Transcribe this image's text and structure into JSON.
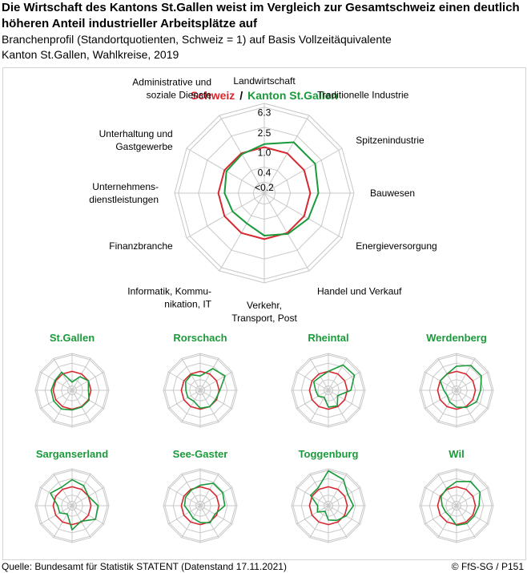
{
  "title": "Die Wirtschaft des Kantons St.Gallen weist im Vergleich zur Gesamtschweiz einen deutlich höheren Anteil industrieller Arbeitsplätze auf",
  "subtitle": "Branchenprofil (Standortquotienten, Schweiz = 1) auf Basis Vollzeitäquivalente",
  "subtitle2": "Kanton St.Gallen, Wahlkreise, 2019",
  "source": "Quelle: Bundesamt für Statistik STATENT (Datenstand 17.11.2021)",
  "copyright": "© FfS-SG / P151",
  "colors": {
    "schweiz": "#d7282f",
    "kanton": "#1a9a3a",
    "grid": "#c8c8c8",
    "region_title": "#1a9a3a"
  },
  "chart_data": {
    "type": "radar",
    "legend": {
      "schweiz": "Schweiz",
      "separator": "/",
      "kanton": "Kanton St.Gallen"
    },
    "axes": [
      [
        "Landwirtschaft"
      ],
      [
        "Traditionelle Industrie"
      ],
      [
        "Spitzenindustrie"
      ],
      [
        "Bauwesen"
      ],
      [
        "Energieversorgung"
      ],
      [
        "Handel und Verkauf"
      ],
      [
        "Verkehr,",
        "Transport, Post"
      ],
      [
        "Informatik, Kommu-",
        "nikation, IT"
      ],
      [
        "Finanzbranche"
      ],
      [
        "Unternehmens-",
        "dienstleistungen"
      ],
      [
        "Unterhaltung und",
        "Gastgewerbe"
      ],
      [
        "Administrative und",
        "soziale Dienste"
      ]
    ],
    "scale_labels": [
      "6.3",
      "2.5",
      "1.0",
      "0.4",
      "<0.2"
    ],
    "scale_values": [
      6.3,
      2.5,
      1.0,
      0.4,
      0.2
    ],
    "scale": "log",
    "main": {
      "schweiz": [
        1,
        1,
        1,
        1,
        1,
        1,
        1,
        1,
        1,
        1,
        1,
        1
      ],
      "kanton": [
        1.15,
        1.8,
        1.8,
        1.45,
        1.25,
        1.05,
        0.85,
        0.6,
        0.65,
        0.75,
        0.9,
        0.95
      ]
    },
    "regions": [
      {
        "name": "St.Gallen",
        "values": [
          0.3,
          0.7,
          1.0,
          0.75,
          1.1,
          1.05,
          1.1,
          1.35,
          1.3,
          1.25,
          1.1,
          1.25
        ]
      },
      {
        "name": "Rorschach",
        "values": [
          0.6,
          2.0,
          3.0,
          1.1,
          0.9,
          1.0,
          0.9,
          0.5,
          0.6,
          0.6,
          0.8,
          0.9
        ]
      },
      {
        "name": "Rheintal",
        "values": [
          1.0,
          3.2,
          3.5,
          1.5,
          0.4,
          0.9,
          0.8,
          0.3,
          0.45,
          0.5,
          0.8,
          0.7
        ]
      },
      {
        "name": "Werdenberg",
        "values": [
          1.8,
          3.0,
          3.0,
          1.8,
          1.6,
          1.1,
          0.8,
          0.55,
          0.4,
          0.5,
          1.0,
          1.0
        ]
      },
      {
        "name": "Sarganserland",
        "values": [
          2.2,
          1.6,
          1.0,
          2.2,
          2.5,
          0.9,
          1.8,
          0.35,
          0.6,
          0.6,
          2.0,
          1.3
        ]
      },
      {
        "name": "See-Gaster",
        "values": [
          1.2,
          2.2,
          2.2,
          1.9,
          0.8,
          1.1,
          0.8,
          0.6,
          0.5,
          0.7,
          0.8,
          0.9
        ]
      },
      {
        "name": "Toggenburg",
        "values": [
          6.0,
          3.5,
          1.5,
          2.0,
          1.2,
          0.8,
          0.6,
          0.25,
          0.5,
          0.4,
          1.2,
          1.2
        ]
      },
      {
        "name": "Wil",
        "values": [
          1.8,
          2.8,
          2.5,
          1.5,
          1.2,
          1.2,
          1.1,
          0.5,
          0.5,
          0.6,
          0.9,
          1.1
        ]
      }
    ]
  }
}
